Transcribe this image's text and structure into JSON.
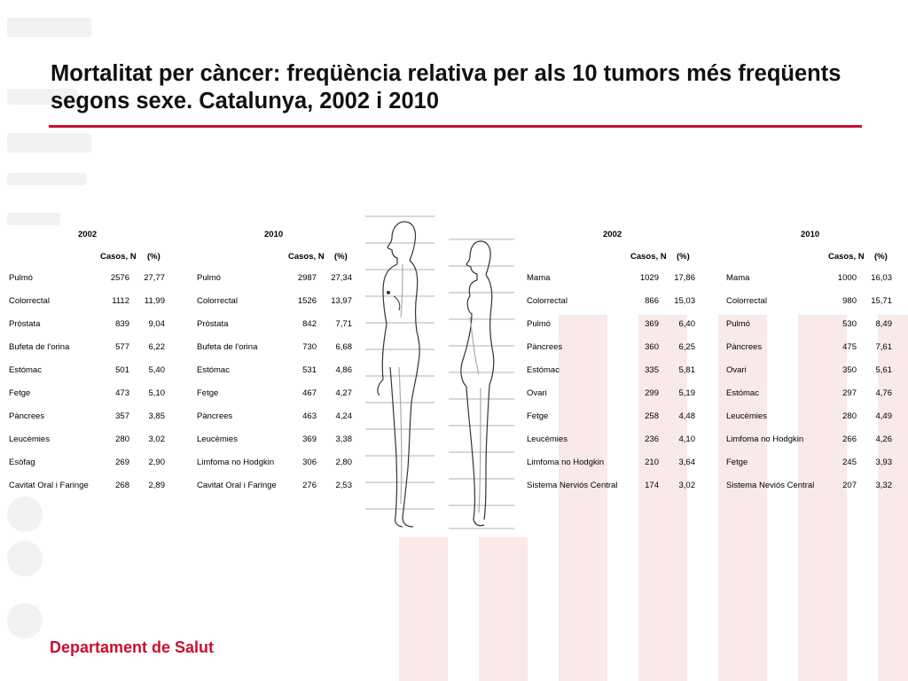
{
  "slide": {
    "title": "Mortalitat per càncer: freqüència relativa per als 10 tumors més freqüents segons sexe. Catalunya, 2002 i 2010",
    "footer": "Departament de Salut"
  },
  "colors": {
    "accent": "#c8102e",
    "watermark": "#f9e9e9"
  },
  "men": {
    "year_a": "2002",
    "year_b": "2010",
    "col_n": "Casos, N",
    "col_pct": "(%)",
    "rows_a": [
      {
        "tumor": "Pulmó",
        "n": "2576",
        "pct": "27,77"
      },
      {
        "tumor": "Colorrectal",
        "n": "1112",
        "pct": "11,99"
      },
      {
        "tumor": "Pròstata",
        "n": "839",
        "pct": "9,04"
      },
      {
        "tumor": "Bufeta de l'orina",
        "n": "577",
        "pct": "6,22"
      },
      {
        "tumor": "Estómac",
        "n": "501",
        "pct": "5,40"
      },
      {
        "tumor": "Fetge",
        "n": "473",
        "pct": "5,10"
      },
      {
        "tumor": "Pàncrees",
        "n": "357",
        "pct": "3,85"
      },
      {
        "tumor": "Leucèmies",
        "n": "280",
        "pct": "3,02"
      },
      {
        "tumor": "Esòfag",
        "n": "269",
        "pct": "2,90"
      },
      {
        "tumor": "Cavitat Oral i Faringe",
        "n": "268",
        "pct": "2,89"
      }
    ],
    "rows_b": [
      {
        "tumor": "Pulmó",
        "n": "2987",
        "pct": "27,34"
      },
      {
        "tumor": "Colorrectal",
        "n": "1526",
        "pct": "13,97"
      },
      {
        "tumor": "Pròstata",
        "n": "842",
        "pct": "7,71"
      },
      {
        "tumor": "Bufeta de l'orina",
        "n": "730",
        "pct": "6,68"
      },
      {
        "tumor": "Estómac",
        "n": "531",
        "pct": "4,86"
      },
      {
        "tumor": "Fetge",
        "n": "467",
        "pct": "4,27"
      },
      {
        "tumor": "Pàncrees",
        "n": "463",
        "pct": "4,24"
      },
      {
        "tumor": "Leucèmies",
        "n": "369",
        "pct": "3,38"
      },
      {
        "tumor": "Limfoma no Hodgkin",
        "n": "306",
        "pct": "2,80"
      },
      {
        "tumor": "Cavitat Oral i Faringe",
        "n": "276",
        "pct": "2,53"
      }
    ]
  },
  "women": {
    "year_a": "2002",
    "year_b": "2010",
    "col_n": "Casos, N",
    "col_pct": "(%)",
    "rows_a": [
      {
        "tumor": "Mama",
        "n": "1029",
        "pct": "17,86"
      },
      {
        "tumor": "Colorrectal",
        "n": "866",
        "pct": "15,03"
      },
      {
        "tumor": "Pulmó",
        "n": "369",
        "pct": "6,40"
      },
      {
        "tumor": "Pàncrees",
        "n": "360",
        "pct": "6,25"
      },
      {
        "tumor": "Estómac",
        "n": "335",
        "pct": "5,81"
      },
      {
        "tumor": "Ovari",
        "n": "299",
        "pct": "5,19"
      },
      {
        "tumor": "Fetge",
        "n": "258",
        "pct": "4,48"
      },
      {
        "tumor": "Leucèmies",
        "n": "236",
        "pct": "4,10"
      },
      {
        "tumor": "Limfoma no Hodgkin",
        "n": "210",
        "pct": "3,64"
      },
      {
        "tumor": "Sistema Nerviós Central",
        "n": "174",
        "pct": "3,02"
      }
    ],
    "rows_b": [
      {
        "tumor": "Mama",
        "n": "1000",
        "pct": "16,03"
      },
      {
        "tumor": "Colorrectal",
        "n": "980",
        "pct": "15,71"
      },
      {
        "tumor": "Pulmó",
        "n": "530",
        "pct": "8,49"
      },
      {
        "tumor": "Pàncrees",
        "n": "475",
        "pct": "7,61"
      },
      {
        "tumor": "Ovari",
        "n": "350",
        "pct": "5,61"
      },
      {
        "tumor": "Estómac",
        "n": "297",
        "pct": "4,76"
      },
      {
        "tumor": "Leucèmies",
        "n": "280",
        "pct": "4,49"
      },
      {
        "tumor": "Limfoma no Hodgkin",
        "n": "266",
        "pct": "4,26"
      },
      {
        "tumor": "Fetge",
        "n": "245",
        "pct": "3,93"
      },
      {
        "tumor": "Sistema Neviós Central",
        "n": "207",
        "pct": "3,32"
      }
    ]
  }
}
